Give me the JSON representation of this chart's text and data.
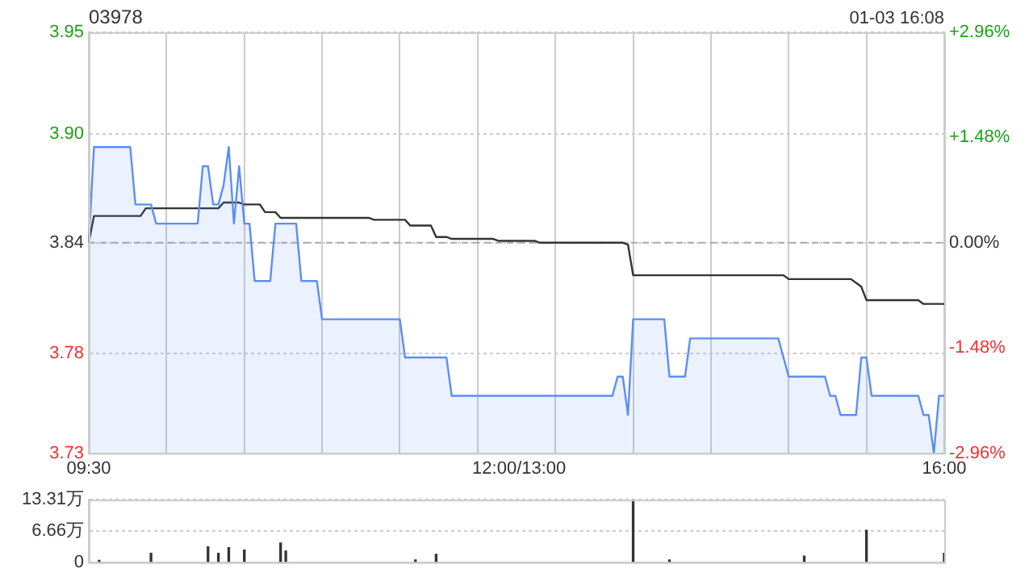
{
  "chart_data": [
    {
      "type": "line",
      "title": "03978",
      "annotations": [
        "01-03 16:08"
      ],
      "categories": [
        "09:30",
        null,
        null,
        null,
        null,
        null,
        null,
        null,
        null,
        null,
        null,
        null,
        null,
        null,
        null,
        null,
        null,
        null,
        null,
        null,
        null,
        null,
        null,
        null,
        null,
        null,
        null,
        null,
        null,
        null,
        null,
        null,
        null,
        null,
        null,
        null,
        null,
        null,
        null,
        null,
        null,
        null,
        null,
        null,
        null,
        null,
        null,
        null,
        null,
        null,
        null,
        null,
        null,
        null,
        null,
        null,
        null,
        null,
        null,
        null,
        null,
        null,
        null,
        null,
        null,
        null,
        null,
        null,
        null,
        null,
        null,
        null,
        null,
        null,
        null,
        null,
        null,
        null,
        null,
        null,
        null,
        null,
        null,
        "12:00/13:00",
        null,
        null,
        null,
        null,
        null,
        null,
        null,
        null,
        null,
        null,
        null,
        null,
        null,
        null,
        null,
        null,
        null,
        null,
        null,
        null,
        null,
        null,
        null,
        null,
        null,
        null,
        null,
        null,
        null,
        null,
        null,
        null,
        null,
        null,
        null,
        null,
        null,
        null,
        null,
        null,
        null,
        null,
        null,
        null,
        null,
        null,
        null,
        null,
        null,
        null,
        null,
        null,
        null,
        null,
        null,
        null,
        null,
        null,
        null,
        null,
        null,
        null,
        null,
        null,
        null,
        null,
        null,
        null,
        null,
        null,
        null,
        null,
        null,
        null,
        null,
        null,
        null,
        null,
        null,
        null,
        null,
        "16:00"
      ],
      "ylim": [
        3.73,
        3.95
      ],
      "yticks": [
        3.73,
        {
          "value": 3.782,
          "label": "3.78"
        },
        3.84,
        {
          "value": 3.897,
          "label": "3.90"
        },
        3.95
      ],
      "y2lim": [
        -2.96,
        2.96
      ],
      "y2ticks": [
        {
          "value": -2.96,
          "label": "-2.96%"
        },
        {
          "value": -1.48,
          "label": "-1.48%"
        },
        {
          "value": 0,
          "label": "0.00%"
        },
        {
          "value": 1.48,
          "label": "+1.48%"
        },
        {
          "value": 2.96,
          "label": "+2.96%"
        }
      ],
      "ref_lines": [
        {
          "axis": "y",
          "value": 3.84,
          "color": "#aaaaaa",
          "line_style": "dashed"
        }
      ],
      "grid": true,
      "marker": "none",
      "series": [
        {
          "type": "area",
          "color": "#5b8ff0",
          "values": [
            3.84,
            3.89,
            3.89,
            3.89,
            3.89,
            3.89,
            3.89,
            3.89,
            3.89,
            3.86,
            3.86,
            3.86,
            3.86,
            3.85,
            3.85,
            3.85,
            3.85,
            3.85,
            3.85,
            3.85,
            3.85,
            3.85,
            3.88,
            3.88,
            3.86,
            3.86,
            3.87,
            3.89,
            3.85,
            3.88,
            3.85,
            3.85,
            3.82,
            3.82,
            3.82,
            3.82,
            3.85,
            3.85,
            3.85,
            3.85,
            3.85,
            3.82,
            3.82,
            3.82,
            3.82,
            3.8,
            3.8,
            3.8,
            3.8,
            3.8,
            3.8,
            3.8,
            3.8,
            3.8,
            3.8,
            3.8,
            3.8,
            3.8,
            3.8,
            3.8,
            3.8,
            3.78,
            3.78,
            3.78,
            3.78,
            3.78,
            3.78,
            3.78,
            3.78,
            3.78,
            3.76,
            3.76,
            3.76,
            3.76,
            3.76,
            3.76,
            3.76,
            3.76,
            3.76,
            3.76,
            3.76,
            3.76,
            3.76,
            3.76,
            3.76,
            3.76,
            3.76,
            3.76,
            3.76,
            3.76,
            3.76,
            3.76,
            3.76,
            3.76,
            3.76,
            3.76,
            3.76,
            3.76,
            3.76,
            3.76,
            3.76,
            3.76,
            3.77,
            3.77,
            3.75,
            3.8,
            3.8,
            3.8,
            3.8,
            3.8,
            3.8,
            3.8,
            3.77,
            3.77,
            3.77,
            3.77,
            3.79,
            3.79,
            3.79,
            3.79,
            3.79,
            3.79,
            3.79,
            3.79,
            3.79,
            3.79,
            3.79,
            3.79,
            3.79,
            3.79,
            3.79,
            3.79,
            3.79,
            3.79,
            3.78,
            3.77,
            3.77,
            3.77,
            3.77,
            3.77,
            3.77,
            3.77,
            3.77,
            3.76,
            3.76,
            3.75,
            3.75,
            3.75,
            3.75,
            3.78,
            3.78,
            3.76,
            3.76,
            3.76,
            3.76,
            3.76,
            3.76,
            3.76,
            3.76,
            3.76,
            3.76,
            3.75,
            3.75,
            3.73,
            3.76,
            3.76
          ]
        },
        {
          "type": "line",
          "color": "#333333",
          "values": [
            3.84,
            3.854,
            3.854,
            3.854,
            3.854,
            3.854,
            3.854,
            3.854,
            3.854,
            3.854,
            3.854,
            3.858,
            3.858,
            3.858,
            3.858,
            3.858,
            3.858,
            3.858,
            3.858,
            3.858,
            3.858,
            3.858,
            3.858,
            3.858,
            3.858,
            3.858,
            3.861,
            3.861,
            3.861,
            3.861,
            3.86,
            3.86,
            3.86,
            3.86,
            3.856,
            3.856,
            3.856,
            3.853,
            3.853,
            3.853,
            3.853,
            3.853,
            3.853,
            3.853,
            3.853,
            3.853,
            3.853,
            3.853,
            3.853,
            3.853,
            3.853,
            3.853,
            3.853,
            3.853,
            3.853,
            3.852,
            3.852,
            3.852,
            3.852,
            3.852,
            3.852,
            3.852,
            3.849,
            3.849,
            3.849,
            3.849,
            3.849,
            3.843,
            3.843,
            3.843,
            3.842,
            3.842,
            3.842,
            3.842,
            3.842,
            3.842,
            3.842,
            3.842,
            3.842,
            3.841,
            3.841,
            3.841,
            3.841,
            3.841,
            3.841,
            3.841,
            3.841,
            3.84,
            3.84,
            3.84,
            3.84,
            3.84,
            3.84,
            3.84,
            3.84,
            3.84,
            3.84,
            3.84,
            3.84,
            3.84,
            3.84,
            3.84,
            3.84,
            3.84,
            3.839,
            3.823,
            3.823,
            3.823,
            3.823,
            3.823,
            3.823,
            3.823,
            3.823,
            3.823,
            3.823,
            3.823,
            3.823,
            3.823,
            3.823,
            3.823,
            3.823,
            3.823,
            3.823,
            3.823,
            3.823,
            3.823,
            3.823,
            3.823,
            3.823,
            3.823,
            3.823,
            3.823,
            3.823,
            3.823,
            3.823,
            3.821,
            3.821,
            3.821,
            3.821,
            3.821,
            3.821,
            3.821,
            3.821,
            3.821,
            3.821,
            3.821,
            3.821,
            3.821,
            3.819,
            3.817,
            3.81,
            3.81,
            3.81,
            3.81,
            3.81,
            3.81,
            3.81,
            3.81,
            3.81,
            3.81,
            3.81,
            3.808,
            3.808,
            3.808,
            3.808,
            3.808
          ]
        }
      ]
    },
    {
      "type": "bar",
      "color": "#333333",
      "tick_labels": "y",
      "grid": "y",
      "categories": [
        null,
        null,
        null,
        null,
        null,
        null,
        null,
        null,
        null,
        null,
        null,
        null,
        null,
        null,
        null,
        null,
        null,
        null,
        null,
        null,
        null,
        null,
        null,
        null,
        null,
        null,
        null,
        null,
        null,
        null,
        null,
        null,
        null,
        null,
        null,
        null,
        null,
        null,
        null,
        null,
        null,
        null,
        null,
        null,
        null,
        null,
        null,
        null,
        null,
        null,
        null,
        null,
        null,
        null,
        null,
        null,
        null,
        null,
        null,
        null,
        null,
        null,
        null,
        null,
        null,
        null,
        null,
        null,
        null,
        null,
        null,
        null,
        null,
        null,
        null,
        null,
        null,
        null,
        null,
        null,
        null,
        null,
        null,
        null,
        null,
        null,
        null,
        null,
        null,
        null,
        null,
        null,
        null,
        null,
        null,
        null,
        null,
        null,
        null,
        null,
        null,
        null,
        null,
        null,
        null,
        null,
        null,
        null,
        null,
        null,
        null,
        null,
        null,
        null,
        null,
        null,
        null,
        null,
        null,
        null,
        null,
        null,
        null,
        null,
        null,
        null,
        null,
        null,
        null,
        null,
        null,
        null,
        null,
        null,
        null,
        null,
        null,
        null,
        null,
        null,
        null,
        null,
        null,
        null,
        null,
        null,
        null,
        null,
        null,
        null,
        null,
        null,
        null,
        null,
        null,
        null,
        null,
        null,
        null,
        null,
        null,
        null,
        null,
        null,
        null,
        null
      ],
      "values": [
        null,
        null,
        0.4,
        null,
        null,
        null,
        null,
        null,
        null,
        null,
        null,
        null,
        1.9,
        null,
        null,
        null,
        null,
        null,
        null,
        null,
        null,
        null,
        null,
        3.3,
        null,
        1.9,
        null,
        3.1,
        null,
        null,
        2.6,
        null,
        null,
        null,
        null,
        null,
        null,
        4.1,
        2.4,
        null,
        null,
        null,
        null,
        null,
        null,
        null,
        null,
        null,
        null,
        null,
        null,
        null,
        null,
        null,
        null,
        null,
        null,
        null,
        null,
        null,
        null,
        null,
        null,
        0.5,
        null,
        null,
        null,
        1.7,
        null,
        null,
        null,
        null,
        null,
        null,
        null,
        null,
        null,
        null,
        null,
        null,
        null,
        null,
        null,
        null,
        null,
        null,
        null,
        null,
        null,
        null,
        null,
        null,
        null,
        null,
        null,
        null,
        null,
        null,
        null,
        null,
        null,
        null,
        null,
        null,
        null,
        13.3,
        null,
        null,
        null,
        null,
        null,
        null,
        0.5,
        null,
        null,
        null,
        null,
        null,
        null,
        null,
        null,
        null,
        null,
        null,
        null,
        null,
        null,
        null,
        null,
        null,
        null,
        null,
        null,
        null,
        null,
        null,
        null,
        null,
        1.3,
        null,
        null,
        null,
        null,
        null,
        null,
        null,
        null,
        null,
        null,
        null,
        6.8,
        null,
        null,
        null,
        null,
        null,
        null,
        null,
        null,
        null,
        null,
        null,
        null,
        null,
        null,
        1.9
      ],
      "ylim": [
        0,
        13.31
      ],
      "yticks": [
        0,
        {
          "value": 6.66,
          "label": "6.66万"
        },
        {
          "value": 13.31,
          "label": "13.31万"
        }
      ]
    }
  ]
}
